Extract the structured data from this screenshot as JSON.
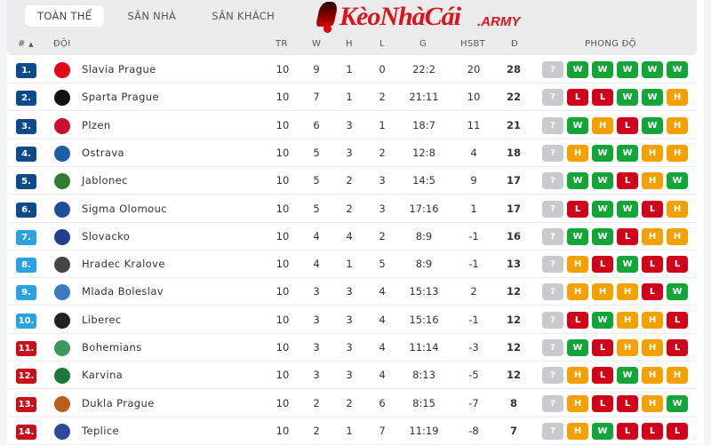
{
  "tabs": [
    "TOÀN THỂ",
    "SÂN NHÀ",
    "SÂN KHÁCH"
  ],
  "active_tab": 0,
  "headers": {
    "rank": "#",
    "team": "ĐỘI",
    "played": "TR",
    "won": "W",
    "draw": "H",
    "lost": "L",
    "goals": "G",
    "gd": "HSBT",
    "points": "Đ",
    "form": "PHONG ĐỘ"
  },
  "watermark": {
    "brand": "KèoNhàCái",
    "suffix": ".ARMY"
  },
  "colors": {
    "W": "#13a538",
    "H": "#f4a100",
    "L": "#d0021b",
    "?": "#c8cbcd",
    "rank_top": "#0c4a8c",
    "rank_mid": "#2ba3e3",
    "rank_bottom": "#c8101a"
  },
  "rows": [
    {
      "rank": "1.",
      "team": "Slavia Prague",
      "tr": "10",
      "w": "9",
      "h": "1",
      "l": "0",
      "g": "22:2",
      "gd": "20",
      "pts": "28",
      "form": [
        "?",
        "W",
        "W",
        "W",
        "W",
        "W"
      ],
      "zone": "top"
    },
    {
      "rank": "2.",
      "team": "Sparta Prague",
      "tr": "10",
      "w": "7",
      "h": "1",
      "l": "2",
      "g": "21:11",
      "gd": "10",
      "pts": "22",
      "form": [
        "?",
        "L",
        "L",
        "W",
        "W",
        "H"
      ],
      "zone": "top"
    },
    {
      "rank": "3.",
      "team": "Plzen",
      "tr": "10",
      "w": "6",
      "h": "3",
      "l": "1",
      "g": "18:7",
      "gd": "11",
      "pts": "21",
      "form": [
        "?",
        "W",
        "H",
        "L",
        "W",
        "H"
      ],
      "zone": "top"
    },
    {
      "rank": "4.",
      "team": "Ostrava",
      "tr": "10",
      "w": "5",
      "h": "3",
      "l": "2",
      "g": "12:8",
      "gd": "4",
      "pts": "18",
      "form": [
        "?",
        "H",
        "W",
        "W",
        "H",
        "H"
      ],
      "zone": "top"
    },
    {
      "rank": "5.",
      "team": "Jablonec",
      "tr": "10",
      "w": "5",
      "h": "2",
      "l": "3",
      "g": "14:5",
      "gd": "9",
      "pts": "17",
      "form": [
        "?",
        "W",
        "W",
        "L",
        "H",
        "W"
      ],
      "zone": "top"
    },
    {
      "rank": "6.",
      "team": "Sigma Olomouc",
      "tr": "10",
      "w": "5",
      "h": "2",
      "l": "3",
      "g": "17:16",
      "gd": "1",
      "pts": "17",
      "form": [
        "?",
        "L",
        "W",
        "W",
        "L",
        "H"
      ],
      "zone": "top"
    },
    {
      "rank": "7.",
      "team": "Slovacko",
      "tr": "10",
      "w": "4",
      "h": "4",
      "l": "2",
      "g": "8:9",
      "gd": "-1",
      "pts": "16",
      "form": [
        "?",
        "W",
        "W",
        "L",
        "H",
        "H"
      ],
      "zone": "mid"
    },
    {
      "rank": "8.",
      "team": "Hradec Kralove",
      "tr": "10",
      "w": "4",
      "h": "1",
      "l": "5",
      "g": "8:9",
      "gd": "-1",
      "pts": "13",
      "form": [
        "?",
        "H",
        "L",
        "W",
        "L",
        "L"
      ],
      "zone": "mid"
    },
    {
      "rank": "9.",
      "team": "Mlada Boleslav",
      "tr": "10",
      "w": "3",
      "h": "3",
      "l": "4",
      "g": "15:13",
      "gd": "2",
      "pts": "12",
      "form": [
        "?",
        "H",
        "H",
        "H",
        "L",
        "W"
      ],
      "zone": "mid"
    },
    {
      "rank": "10.",
      "team": "Liberec",
      "tr": "10",
      "w": "3",
      "h": "3",
      "l": "4",
      "g": "15:16",
      "gd": "-1",
      "pts": "12",
      "form": [
        "?",
        "L",
        "W",
        "H",
        "H",
        "L"
      ],
      "zone": "mid"
    },
    {
      "rank": "11.",
      "team": "Bohemians",
      "tr": "10",
      "w": "3",
      "h": "3",
      "l": "4",
      "g": "11:14",
      "gd": "-3",
      "pts": "12",
      "form": [
        "?",
        "W",
        "L",
        "H",
        "H",
        "L"
      ],
      "zone": "bottom"
    },
    {
      "rank": "12.",
      "team": "Karvina",
      "tr": "10",
      "w": "3",
      "h": "3",
      "l": "4",
      "g": "8:13",
      "gd": "-5",
      "pts": "12",
      "form": [
        "?",
        "H",
        "L",
        "W",
        "H",
        "H"
      ],
      "zone": "bottom"
    },
    {
      "rank": "13.",
      "team": "Dukla Prague",
      "tr": "10",
      "w": "2",
      "h": "2",
      "l": "6",
      "g": "8:15",
      "gd": "-7",
      "pts": "8",
      "form": [
        "?",
        "H",
        "L",
        "L",
        "H",
        "W"
      ],
      "zone": "bottom"
    },
    {
      "rank": "14.",
      "team": "Teplice",
      "tr": "10",
      "w": "2",
      "h": "1",
      "l": "7",
      "g": "11:19",
      "gd": "-8",
      "pts": "7",
      "form": [
        "?",
        "H",
        "W",
        "L",
        "L",
        "L"
      ],
      "zone": "bottom"
    }
  ]
}
